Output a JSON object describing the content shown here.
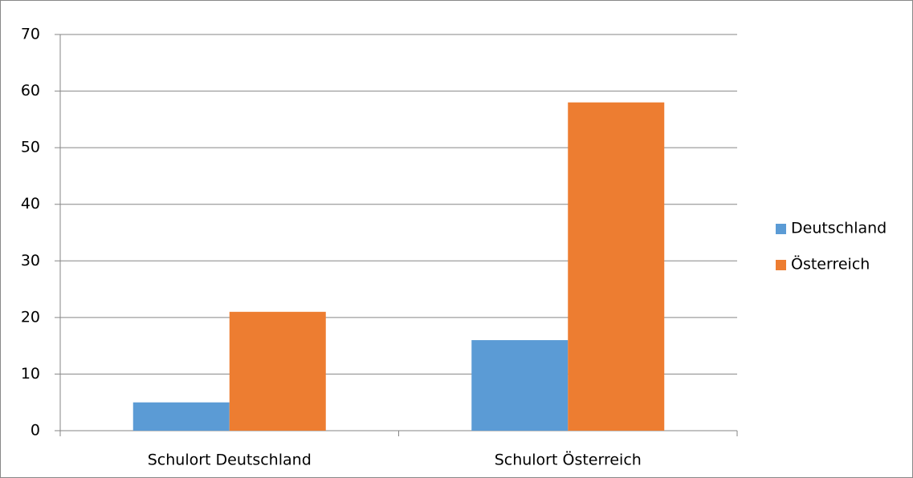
{
  "chart_data": {
    "type": "bar",
    "categories": [
      "Schulort Deutschland",
      "Schulort Österreich"
    ],
    "series": [
      {
        "name": "Deutschland",
        "color": "#5b9bd5",
        "values": [
          5,
          16
        ]
      },
      {
        "name": "Österreich",
        "color": "#ed7d31",
        "values": [
          21,
          58
        ]
      }
    ],
    "ylim": [
      0,
      70
    ],
    "yticks": [
      0,
      10,
      20,
      30,
      40,
      50,
      60,
      70
    ],
    "grid": true,
    "legend": "right"
  }
}
